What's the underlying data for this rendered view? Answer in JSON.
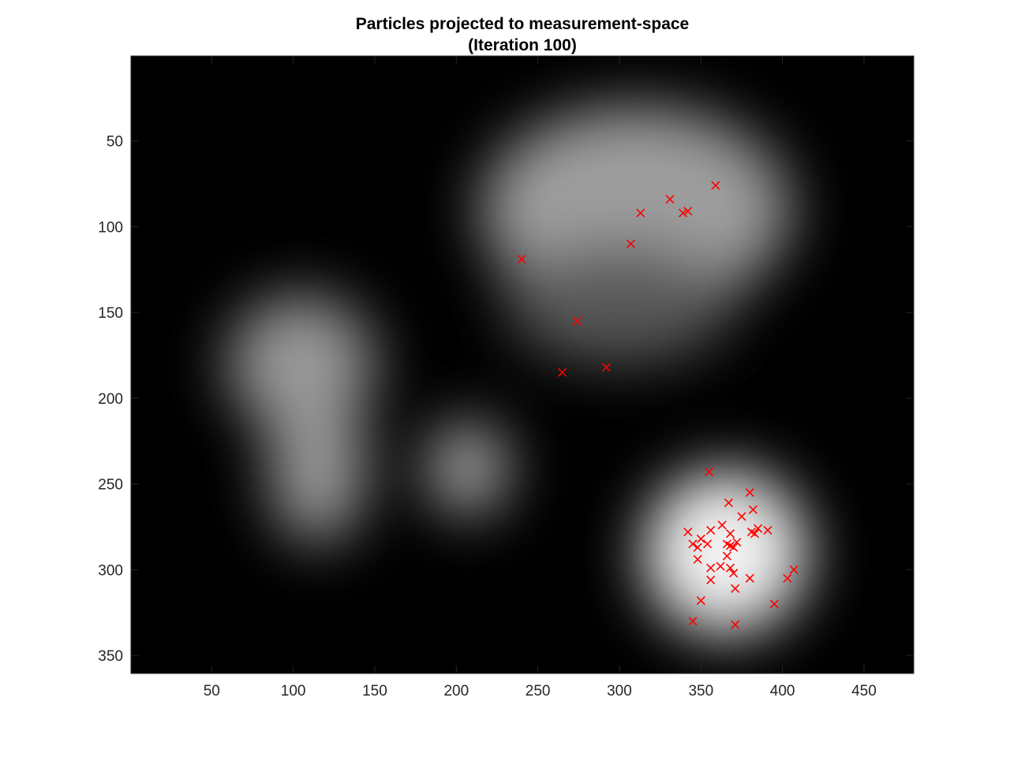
{
  "chart_data": {
    "type": "scatter",
    "title": [
      "Particles projected to measurement-space",
      "(Iteration 100)"
    ],
    "xlabel": "",
    "ylabel": "",
    "xlim": [
      0.5,
      480.5
    ],
    "ylim": [
      0.5,
      360.5
    ],
    "y_reversed": true,
    "grid": false,
    "legend": "none",
    "xticks": [
      50,
      100,
      150,
      200,
      250,
      300,
      350,
      400,
      450
    ],
    "yticks": [
      50,
      100,
      150,
      200,
      250,
      300,
      350
    ],
    "background_image": {
      "description": "grayscale intensity map",
      "colormap": "gray",
      "blobs": [
        {
          "cx": 310,
          "cy": 90,
          "rx": 95,
          "ry": 60,
          "level": 0.62
        },
        {
          "cx": 300,
          "cy": 145,
          "rx": 70,
          "ry": 35,
          "level": 0.35
        },
        {
          "cx": 105,
          "cy": 180,
          "rx": 45,
          "ry": 40,
          "level": 0.6
        },
        {
          "cx": 115,
          "cy": 240,
          "rx": 30,
          "ry": 45,
          "level": 0.6
        },
        {
          "cx": 207,
          "cy": 241,
          "rx": 25,
          "ry": 27,
          "level": 0.65
        },
        {
          "cx": 365,
          "cy": 290,
          "rx": 50,
          "ry": 48,
          "level": 0.95
        }
      ]
    },
    "series": [
      {
        "marker": "x",
        "color": "#ff0000",
        "points": [
          [
            359,
            76
          ],
          [
            331,
            84
          ],
          [
            313,
            92
          ],
          [
            339,
            92
          ],
          [
            342,
            91
          ],
          [
            307,
            110
          ],
          [
            240,
            119
          ],
          [
            274,
            155
          ],
          [
            265,
            185
          ],
          [
            292,
            182
          ],
          [
            355,
            243
          ],
          [
            380,
            255
          ],
          [
            367,
            261
          ],
          [
            382,
            265
          ],
          [
            375,
            269
          ],
          [
            363,
            274
          ],
          [
            385,
            276
          ],
          [
            391,
            277
          ],
          [
            356,
            277
          ],
          [
            342,
            278
          ],
          [
            368,
            279
          ],
          [
            381,
            278
          ],
          [
            383,
            279
          ],
          [
            372,
            284
          ],
          [
            345,
            285
          ],
          [
            354,
            285
          ],
          [
            350,
            282
          ],
          [
            348,
            287
          ],
          [
            366,
            285
          ],
          [
            368,
            286
          ],
          [
            370,
            287
          ],
          [
            366,
            292
          ],
          [
            348,
            294
          ],
          [
            362,
            298
          ],
          [
            356,
            299
          ],
          [
            368,
            299
          ],
          [
            370,
            302
          ],
          [
            380,
            305
          ],
          [
            407,
            300
          ],
          [
            403,
            305
          ],
          [
            356,
            306
          ],
          [
            371,
            311
          ],
          [
            350,
            318
          ],
          [
            395,
            320
          ],
          [
            345,
            330
          ],
          [
            371,
            332
          ]
        ]
      }
    ]
  }
}
